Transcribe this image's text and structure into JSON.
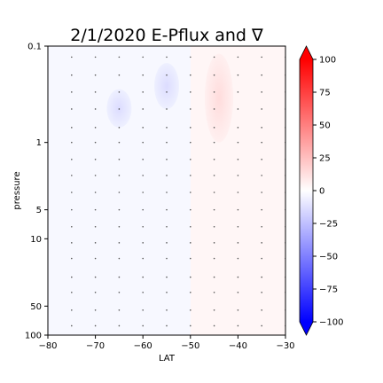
{
  "chart_data": {
    "type": "heatmap",
    "title": "2/1/2020 E-Pflux and ∇",
    "xlabel": "LAT",
    "ylabel": "pressure",
    "xlim": [
      -80,
      -30
    ],
    "ylim": [
      100,
      0.1
    ],
    "yscale": "log",
    "xticks": [
      -80,
      -70,
      -60,
      -50,
      -40,
      -30
    ],
    "xtick_labels": [
      "−80",
      "−70",
      "−60",
      "−50",
      "−40",
      "−30"
    ],
    "yticks": [
      0.1,
      1,
      5,
      10,
      50,
      100
    ],
    "ytick_labels": [
      "0.1",
      "1",
      "5",
      "10",
      "50",
      "100"
    ],
    "colorbar": {
      "colormap": "bwr",
      "range": [
        -100,
        100
      ],
      "ticks": [
        100,
        75,
        50,
        25,
        0,
        -25,
        -50,
        -75,
        -100
      ],
      "tick_labels": [
        "100",
        "75",
        "50",
        "25",
        "0",
        "−25",
        "−50",
        "−75",
        "−100"
      ],
      "extend": "both"
    },
    "anomalies": [
      {
        "lat": -55,
        "p_top": 0.15,
        "p_bottom": 0.45,
        "value": -15
      },
      {
        "lat": -65,
        "p_top": 0.28,
        "p_bottom": 0.7,
        "value": -20
      },
      {
        "lat": -44,
        "p_top": 0.12,
        "p_bottom": 1.0,
        "value": 15
      }
    ],
    "quiver_lats": [
      -75,
      -70,
      -65,
      -60,
      -55,
      -50,
      -45,
      -40,
      -35,
      -30
    ],
    "quiver_pressures": [
      0.13,
      0.2,
      0.3,
      0.45,
      0.7,
      1.0,
      1.5,
      2.2,
      3.3,
      5,
      7.5,
      11,
      16,
      25,
      36,
      55,
      80
    ],
    "grid": false
  }
}
